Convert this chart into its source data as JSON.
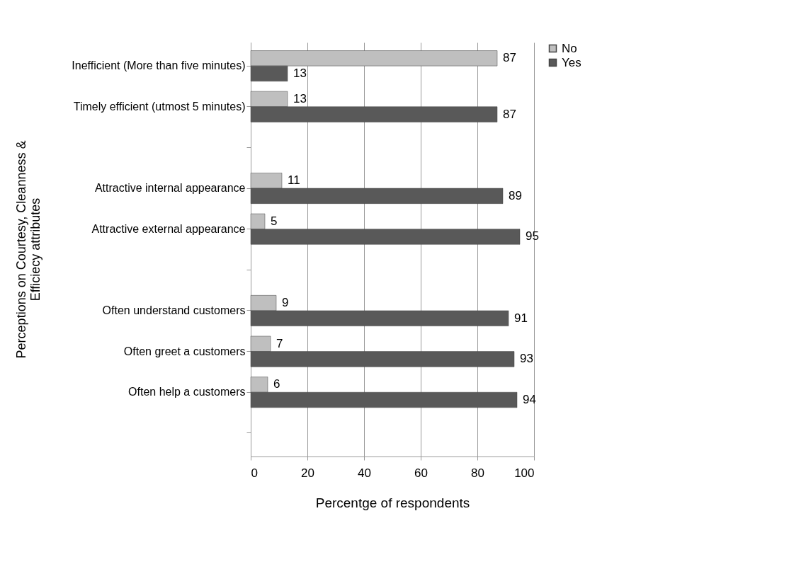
{
  "chart_data": {
    "type": "bar",
    "orientation": "horizontal",
    "xlabel": "Percentge of respondents",
    "ylabel": "Perceptions on  Courtesy, Cleanness & Efficiecy attributes",
    "categories": [
      "Inefficient (More than five minutes)",
      "Timely efficient  (utmost 5 minutes)",
      null,
      "Attractive internal appearance",
      "Attractive external appearance",
      null,
      "Often  understand customers",
      "Often greet a customers",
      "Often help a customers",
      null
    ],
    "series": [
      {
        "name": "No",
        "color": "#bfbfbf",
        "values": [
          87,
          13,
          null,
          11,
          5,
          null,
          9,
          7,
          6,
          null
        ]
      },
      {
        "name": "Yes",
        "color": "#595959",
        "values": [
          13,
          87,
          null,
          89,
          95,
          null,
          91,
          93,
          94,
          null
        ]
      }
    ],
    "xlim": [
      0,
      100
    ],
    "xticks": [
      0,
      20,
      40,
      60,
      80,
      100
    ],
    "grid": "x",
    "legend": "right",
    "data_labels": true
  }
}
